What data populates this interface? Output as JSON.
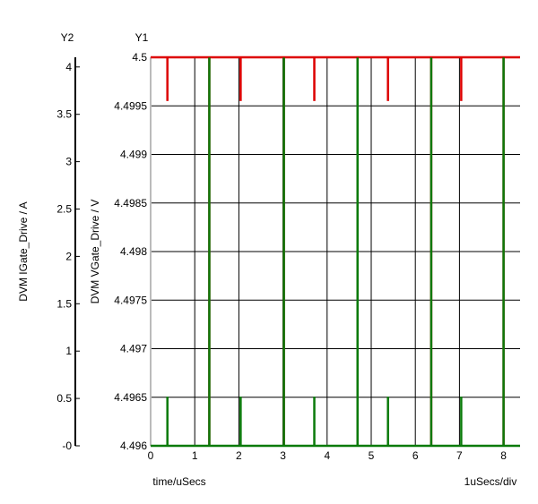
{
  "chart_data": {
    "type": "line",
    "title": "",
    "x_axis": {
      "label": "time/uSecs",
      "scale_label": "1uSecs/div",
      "range": [
        0,
        8.5
      ],
      "ticks": [
        "0",
        "1",
        "2",
        "3",
        "4",
        "5",
        "6",
        "7",
        "8"
      ]
    },
    "y1_axis": {
      "name": "Y1",
      "label": "DVM VGate_Drive / V",
      "range": [
        4.496,
        4.5
      ],
      "ticks": [
        "4.5",
        "4.4995",
        "4.499",
        "4.4985",
        "4.498",
        "4.4975",
        "4.497",
        "4.4965",
        "4.496"
      ]
    },
    "y2_axis": {
      "name": "Y2",
      "label": "DVM IGate_Drive / A",
      "range": [
        0,
        4.1
      ],
      "ticks": [
        "4",
        "3.5",
        "3",
        "2.5",
        "2",
        "1.5",
        "1",
        "0.5",
        "-0"
      ]
    },
    "grid": true,
    "series": [
      {
        "axis": "y1",
        "color": "#dd0000",
        "baseline": 4.5,
        "spikes": [
          {
            "x": 0.38,
            "y": 4.49955
          },
          {
            "x": 1.33,
            "y": 4.496
          },
          {
            "x": 2.04,
            "y": 4.49955
          },
          {
            "x": 3.02,
            "y": 4.496
          },
          {
            "x": 3.71,
            "y": 4.49955
          },
          {
            "x": 4.69,
            "y": 4.496
          },
          {
            "x": 5.38,
            "y": 4.49955
          },
          {
            "x": 6.36,
            "y": 4.496
          },
          {
            "x": 7.04,
            "y": 4.49955
          },
          {
            "x": 8.0,
            "y": 4.496
          }
        ]
      },
      {
        "axis": "y2",
        "color": "#0a7a0a",
        "baseline": 0,
        "spikes": [
          {
            "x": 0.38,
            "y": 0.52
          },
          {
            "x": 1.33,
            "y": 4.1
          },
          {
            "x": 2.04,
            "y": 0.52
          },
          {
            "x": 3.02,
            "y": 4.1
          },
          {
            "x": 3.71,
            "y": 0.52
          },
          {
            "x": 4.69,
            "y": 4.1
          },
          {
            "x": 5.38,
            "y": 0.52
          },
          {
            "x": 6.36,
            "y": 4.1
          },
          {
            "x": 7.04,
            "y": 0.52
          },
          {
            "x": 8.0,
            "y": 4.1
          }
        ]
      }
    ]
  }
}
